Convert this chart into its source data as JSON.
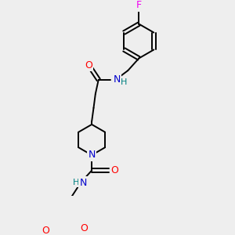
{
  "bg_color": "#eeeeee",
  "atom_colors": {
    "C": "#000000",
    "N": "#0000cc",
    "O": "#ff0000",
    "F": "#ee00ee",
    "H": "#008080"
  },
  "bond_color": "#000000",
  "bond_width": 1.4,
  "figsize": [
    3.0,
    3.0
  ],
  "dpi": 100,
  "xlim": [
    0,
    300
  ],
  "ylim": [
    0,
    300
  ]
}
